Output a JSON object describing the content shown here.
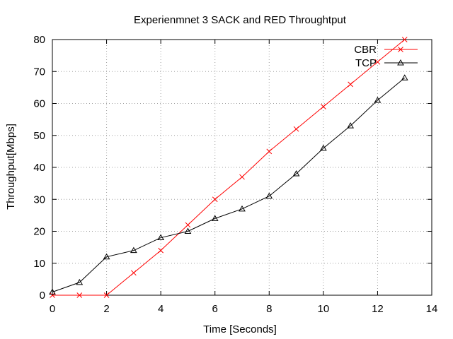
{
  "chart_data": {
    "type": "line",
    "title": "Experienmnet 3 SACK and RED Throughtput",
    "xlabel": "Time [Seconds]",
    "ylabel": "Throughput[Mbps]",
    "xlim": [
      0,
      14
    ],
    "ylim": [
      0,
      80
    ],
    "xticks": [
      "0",
      "2",
      "4",
      "6",
      "8",
      "10",
      "12",
      "14"
    ],
    "yticks": [
      "0",
      "10",
      "20",
      "30",
      "40",
      "50",
      "60",
      "70",
      "80"
    ],
    "grid": true,
    "legend_position": "top-right",
    "series": [
      {
        "name": "CBR",
        "color": "#ff0000",
        "marker": "cross",
        "x": [
          0,
          1,
          2,
          3,
          4,
          5,
          6,
          7,
          8,
          9,
          10,
          11,
          12,
          13
        ],
        "y": [
          0,
          0,
          0,
          7,
          14,
          22,
          30,
          37,
          45,
          52,
          59,
          66,
          73,
          80
        ]
      },
      {
        "name": "TCP",
        "color": "#000000",
        "marker": "triangle",
        "x": [
          0,
          1,
          2,
          3,
          4,
          5,
          6,
          7,
          8,
          9,
          10,
          11,
          12,
          13
        ],
        "y": [
          1,
          4,
          12,
          14,
          18,
          20,
          24,
          27,
          31,
          38,
          46,
          53,
          61,
          68
        ]
      }
    ]
  }
}
